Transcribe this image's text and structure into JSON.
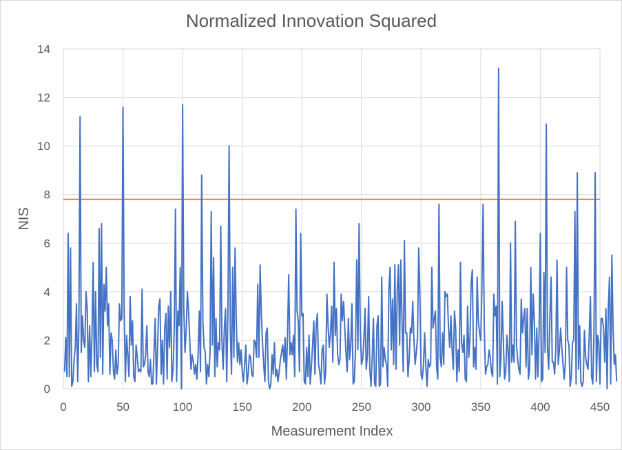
{
  "chart_data": {
    "type": "line",
    "title": "Normalized Innovation Squared",
    "xlabel": "Measurement Index",
    "ylabel": "NIS",
    "xlim": [
      0,
      450
    ],
    "ylim": [
      0,
      14
    ],
    "x_ticks": [
      0,
      50,
      100,
      150,
      200,
      250,
      300,
      350,
      400,
      450
    ],
    "y_ticks": [
      0,
      2,
      4,
      6,
      8,
      10,
      12,
      14
    ],
    "grid": true,
    "legend": "none",
    "colors": {
      "nis": "#4472C4",
      "threshold": "#ED7D31",
      "grid": "#d9d9d9",
      "text": "#595959"
    },
    "series": [
      {
        "role": "nis",
        "x_start": 1,
        "x_step": 1,
        "values": [
          0.7,
          2.1,
          0.5,
          6.4,
          0.5,
          5.8,
          0.1,
          0.3,
          1.2,
          1.7,
          3.5,
          0.3,
          2.5,
          11.2,
          1.5,
          3.0,
          2.0,
          1.7,
          4.0,
          3.3,
          0.3,
          2.6,
          0.5,
          2.3,
          5.2,
          0.7,
          4.0,
          1.0,
          0.7,
          6.6,
          1.3,
          6.8,
          0.6,
          4.3,
          3.2,
          5.0,
          2.6,
          3.5,
          0.6,
          2.3,
          2.0,
          0.7,
          0.4,
          1.6,
          0.6,
          1.0,
          3.5,
          2.8,
          2.9,
          11.6,
          3.2,
          0.3,
          2.2,
          1.4,
          0.5,
          3.8,
          1.8,
          2.8,
          0.5,
          0.3,
          1.8,
          1.3,
          0.7,
          0.8,
          0.7,
          4.1,
          0.9,
          1.0,
          1.4,
          2.6,
          0.7,
          0.5,
          1.2,
          0.2,
          0.2,
          1.5,
          2.9,
          0.2,
          1.7,
          3.4,
          3.7,
          0.6,
          2.0,
          0.2,
          2.5,
          3.1,
          0.4,
          3.4,
          1.7,
          4.0,
          0.3,
          0.8,
          2.5,
          7.4,
          0.3,
          3.2,
          2.6,
          5.0,
          0.0,
          11.7,
          3.3,
          1.5,
          2.4,
          4.0,
          3.2,
          2.0,
          0.8,
          1.4,
          1.1,
          0.6,
          1.0,
          0.4,
          1.4,
          3.2,
          0.7,
          8.8,
          2.8,
          1.7,
          1.5,
          0.2,
          1.0,
          0.5,
          1.5,
          7.3,
          1.8,
          5.4,
          0.5,
          2.9,
          0.9,
          1.9,
          1.6,
          6.7,
          1.9,
          0.8,
          2.5,
          3.3,
          0.3,
          3.1,
          10.0,
          2.4,
          0.6,
          5.0,
          1.3,
          5.8,
          2.8,
          1.1,
          1.9,
          1.0,
          1.6,
          0.7,
          0.3,
          1.0,
          1.8,
          0.2,
          0.6,
          1.4,
          1.3,
          0.6,
          0.5,
          2.0,
          1.9,
          1.3,
          4.3,
          1.3,
          5.1,
          3.1,
          1.9,
          1.0,
          0.3,
          2.3,
          2.5,
          0.3,
          0.0,
          0.2,
          1.4,
          0.6,
          1.9,
          0.5,
          0.8,
          0.3,
          0.7,
          1.2,
          1.5,
          1.8,
          1.1,
          2.1,
          0.4,
          2.3,
          4.7,
          1.4,
          1.9,
          1.4,
          2.2,
          0.5,
          7.4,
          3.2,
          2.8,
          0.7,
          6.4,
          3.0,
          3.1,
          0.3,
          0.2,
          1.7,
          0.5,
          2.2,
          0.2,
          0.9,
          1.8,
          2.8,
          0.6,
          2.6,
          3.1,
          1.0,
          0.7,
          0.2,
          1.6,
          1.8,
          0.2,
          0.7,
          3.9,
          2.6,
          1.7,
          2.3,
          3.4,
          1.1,
          5.2,
          2.2,
          3.3,
          1.4,
          1.0,
          1.2,
          3.9,
          2.8,
          3.6,
          2.5,
          1.5,
          0.7,
          2.9,
          1.2,
          1.8,
          3.5,
          0.2,
          0.3,
          1.7,
          5.3,
          1.6,
          6.8,
          2.4,
          1.0,
          1.2,
          2.0,
          3.3,
          0.8,
          1.4,
          3.8,
          0.8,
          0.1,
          1.3,
          2.9,
          0.2,
          0.1,
          2.6,
          3.0,
          0.1,
          0.2,
          4.6,
          0.9,
          1.7,
          1.2,
          1.0,
          0.1,
          4.1,
          5.0,
          1.6,
          3.7,
          1.0,
          5.1,
          0.8,
          4.1,
          5.1,
          1.8,
          5.3,
          2.8,
          0.7,
          6.1,
          2.3,
          2.3,
          0.5,
          1.2,
          2.5,
          2.3,
          3.6,
          2.0,
          1.0,
          1.5,
          2.1,
          5.8,
          3.9,
          0.6,
          0.4,
          1.0,
          2.3,
          0.9,
          0.1,
          1.2,
          0.9,
          1.0,
          5.0,
          2.5,
          2.9,
          3.2,
          0.9,
          0.4,
          7.6,
          1.3,
          0.9,
          2.3,
          1.0,
          4.0,
          3.8,
          3.9,
          2.5,
          1.7,
          3.0,
          1.6,
          0.8,
          3.2,
          2.5,
          0.3,
          1.6,
          0.7,
          5.2,
          1.9,
          1.5,
          2.2,
          0.4,
          0.3,
          3.4,
          1.3,
          2.1,
          4.4,
          4.9,
          0.9,
          1.7,
          0.8,
          4.6,
          2.8,
          2.3,
          2.0,
          4.1,
          7.6,
          2.5,
          0.6,
          0.9,
          1.0,
          1.6,
          1.3,
          0.7,
          0.5,
          3.9,
          3.0,
          3.4,
          0.2,
          13.2,
          0.5,
          1.3,
          3.6,
          1.9,
          0.4,
          0.7,
          2.2,
          1.5,
          0.3,
          6.0,
          1.1,
          1.8,
          1.1,
          6.9,
          1.8,
          1.2,
          0.8,
          0.6,
          3.7,
          2.3,
          2.9,
          3.3,
          0.9,
          3.3,
          0.4,
          0.8,
          5.0,
          1.4,
          3.9,
          2.8,
          0.4,
          2.5,
          0.5,
          2.5,
          6.4,
          0.3,
          0.4,
          4.8,
          1.5,
          10.9,
          1.7,
          0.8,
          2.9,
          4.6,
          1.1,
          1.1,
          0.6,
          1.7,
          5.3,
          1.0,
          1.6,
          2.5,
          1.7,
          1.0,
          0.4,
          1.1,
          5.0,
          2.0,
          1.8,
          0.1,
          0.5,
          1.9,
          2.0,
          7.3,
          0.2,
          8.9,
          0.8,
          2.6,
          0.3,
          0.1,
          0.3,
          2.4,
          1.3,
          1.0,
          0.8,
          2.2,
          3.8,
          0.5,
          0.2,
          2.3,
          8.9,
          0.3,
          2.2,
          1.9,
          0.2,
          2.9,
          2.9,
          2.5,
          1.1,
          3.3,
          0.0,
          3.3,
          4.6,
          0.2,
          5.5,
          2.5,
          1.0,
          1.4,
          0.3
        ]
      },
      {
        "role": "threshold",
        "x": [
          0,
          450
        ],
        "values": [
          7.8,
          7.8
        ]
      }
    ]
  }
}
